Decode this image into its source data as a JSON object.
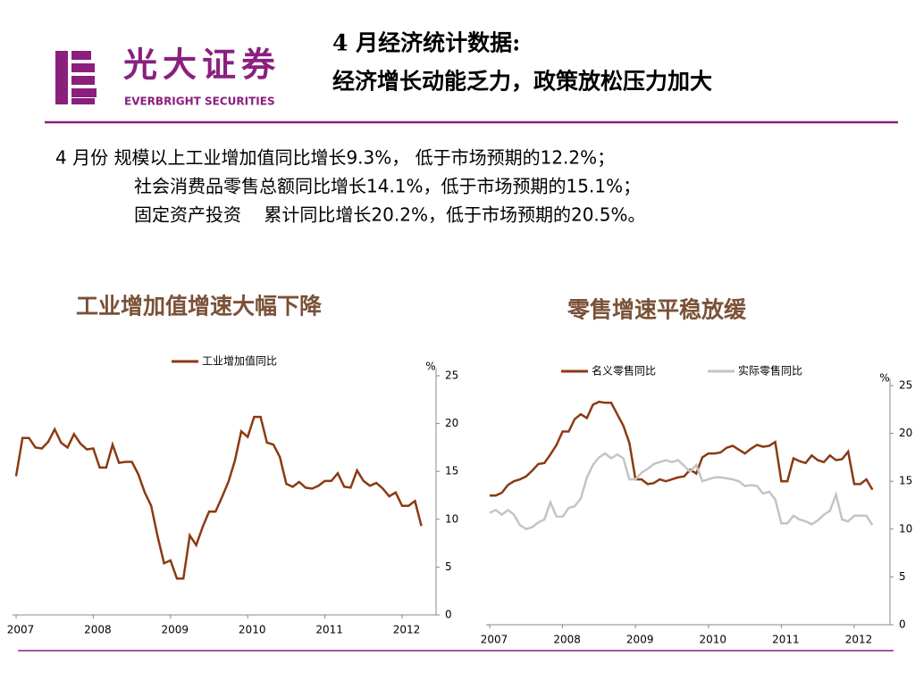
{
  "header": {
    "logo_cn": "光大证券",
    "logo_en": "EVERBRIGHT SECURITIES",
    "title_lines": [
      "4 月经济统计数据:",
      "经济增长动能乏力，政策放松压力加大"
    ]
  },
  "body": {
    "lines": [
      "4 月份 规模以上工业增加值同比增长9.3%， 低于市场预期的12.2%；",
      "社会消费品零售总额同比增长14.1%，低于市场预期的15.1%；",
      "固定资产投资    累计同比增长20.2%，低于市场预期的20.5%。"
    ]
  },
  "chart_data": [
    {
      "type": "line",
      "title": "工业增加值增速大幅下降",
      "y_axis_label": "%",
      "categories": [
        "2007",
        null,
        null,
        null,
        null,
        null,
        null,
        null,
        null,
        null,
        null,
        null,
        "2008",
        null,
        null,
        null,
        null,
        null,
        null,
        null,
        null,
        null,
        null,
        null,
        "2009",
        null,
        null,
        null,
        null,
        null,
        null,
        null,
        null,
        null,
        null,
        null,
        "2010",
        null,
        null,
        null,
        null,
        null,
        null,
        null,
        null,
        null,
        null,
        null,
        "2011",
        null,
        null,
        null,
        null,
        null,
        null,
        null,
        null,
        null,
        null,
        null,
        "2012",
        null,
        null,
        null
      ],
      "series": [
        {
          "name": "工业增加值同比",
          "color": "#8b3a12",
          "values": [
            14.5,
            18.5,
            18.5,
            17.5,
            17.4,
            18.1,
            19.4,
            18.0,
            17.5,
            18.9,
            17.9,
            17.3,
            17.4,
            15.4,
            15.4,
            17.8,
            15.9,
            16.0,
            16.0,
            14.7,
            12.8,
            11.4,
            8.2,
            5.4,
            5.7,
            3.8,
            3.8,
            8.3,
            7.3,
            9.2,
            10.8,
            10.8,
            12.3,
            13.9,
            16.1,
            19.2,
            18.6,
            20.7,
            20.7,
            18.0,
            17.8,
            16.5,
            13.7,
            13.4,
            13.9,
            13.3,
            13.2,
            13.5,
            14.0,
            14.0,
            14.8,
            13.4,
            13.3,
            15.1,
            14.0,
            13.5,
            13.8,
            13.2,
            12.4,
            12.8,
            11.4,
            11.4,
            11.9,
            9.3
          ]
        }
      ],
      "ylim": [
        0,
        25
      ],
      "yticks": [
        0,
        5,
        10,
        15,
        20,
        25
      ]
    },
    {
      "type": "line",
      "title": "零售增速平稳放缓",
      "y_axis_label": "%",
      "categories": [
        "2007",
        null,
        null,
        null,
        null,
        null,
        null,
        null,
        null,
        null,
        null,
        null,
        "2008",
        null,
        null,
        null,
        null,
        null,
        null,
        null,
        null,
        null,
        null,
        null,
        "2009",
        null,
        null,
        null,
        null,
        null,
        null,
        null,
        null,
        null,
        null,
        null,
        "2010",
        null,
        null,
        null,
        null,
        null,
        null,
        null,
        null,
        null,
        null,
        null,
        "2011",
        null,
        null,
        null,
        null,
        null,
        null,
        null,
        null,
        null,
        null,
        null,
        "2012",
        null,
        null,
        null
      ],
      "series": [
        {
          "name": "名义零售同比",
          "color": "#8b3a12",
          "values": [
            13.5,
            13.5,
            13.8,
            14.6,
            15.0,
            15.2,
            15.5,
            16.1,
            16.8,
            16.9,
            17.8,
            18.8,
            20.2,
            20.2,
            21.5,
            22.0,
            21.6,
            23.0,
            23.3,
            23.2,
            23.2,
            22.0,
            20.8,
            19.0,
            15.2,
            15.2,
            14.7,
            14.8,
            15.2,
            15.0,
            15.2,
            15.4,
            15.5,
            16.2,
            15.8,
            17.5,
            17.9,
            17.9,
            18.0,
            18.5,
            18.7,
            18.3,
            17.9,
            18.4,
            18.8,
            18.6,
            18.7,
            19.1,
            15.0,
            15.0,
            17.4,
            17.1,
            16.9,
            17.7,
            17.2,
            17.0,
            17.7,
            17.2,
            17.3,
            18.1,
            14.7,
            14.7,
            15.2,
            14.1
          ]
        },
        {
          "name": "实际零售同比",
          "color": "#c4c4c4",
          "values": [
            11.7,
            12.0,
            11.5,
            12.0,
            11.5,
            10.4,
            10.0,
            10.2,
            10.7,
            11.0,
            12.8,
            11.3,
            11.3,
            12.2,
            12.4,
            13.2,
            15.4,
            16.7,
            17.5,
            17.9,
            17.4,
            17.8,
            17.4,
            15.2,
            15.2,
            15.9,
            16.3,
            16.8,
            17.0,
            17.2,
            17.0,
            17.2,
            16.6,
            16.0,
            16.7,
            15.0,
            15.2,
            15.4,
            15.4,
            15.3,
            15.2,
            15.0,
            14.5,
            14.6,
            14.5,
            13.7,
            13.9,
            13.1,
            10.6,
            10.6,
            11.4,
            11.0,
            10.8,
            10.5,
            10.9,
            11.5,
            11.9,
            13.6,
            11.0,
            10.8,
            11.4,
            11.4,
            11.4,
            10.4
          ]
        }
      ],
      "ylim": [
        0,
        25
      ],
      "yticks": [
        0,
        5,
        10,
        15,
        20,
        25
      ]
    }
  ]
}
